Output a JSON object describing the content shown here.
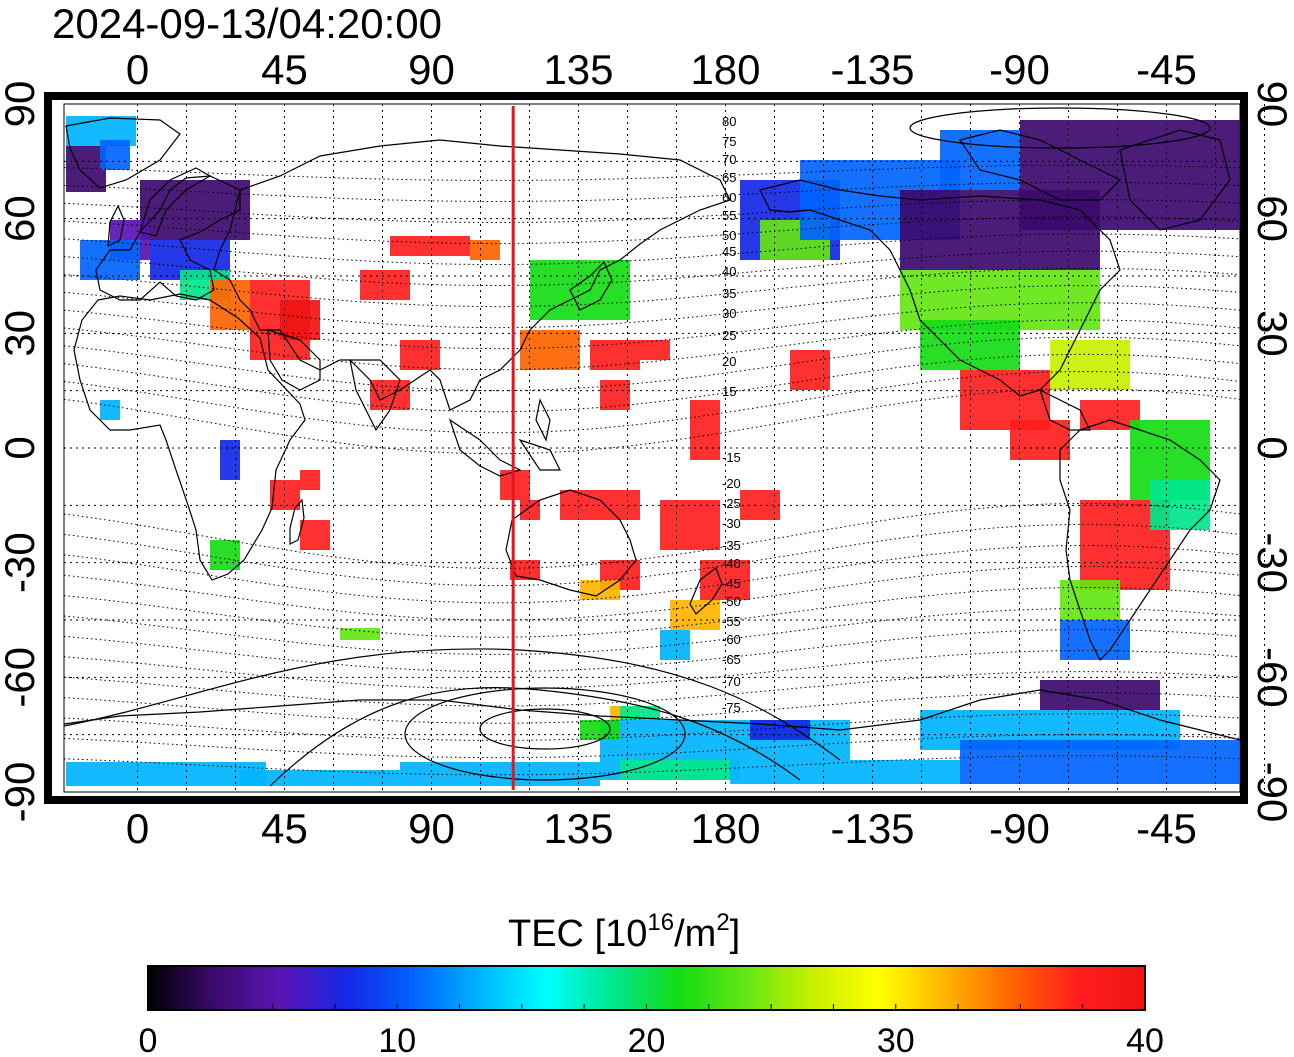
{
  "timestamp": "2024-09-13/04:20:00",
  "map": {
    "lon_start": -22.5,
    "lon_end": 337.5,
    "lat_top": 90,
    "lat_bottom": -90,
    "top_lon_labels": [
      "0",
      "45",
      "90",
      "135",
      "180",
      "-135",
      "-90",
      "-45"
    ],
    "bottom_lon_labels": [
      "0",
      "45",
      "90",
      "135",
      "180",
      "-135",
      "-90",
      "-45"
    ],
    "left_lat_labels": [
      "90",
      "60",
      "30",
      "0",
      "-30",
      "-60",
      "-90"
    ],
    "right_lat_labels": [
      "90",
      "60",
      "30",
      "0",
      "-30",
      "-60",
      "-90"
    ],
    "marker_longitude": 115,
    "marker_color": "#e8141e",
    "magnetic_lat_labels": [
      "80",
      "75",
      "70",
      "65",
      "60",
      "55",
      "50",
      "45",
      "40",
      "35",
      "30",
      "25",
      "20",
      "15",
      "-15",
      "-20",
      "-25",
      "-30",
      "-35",
      "-40",
      "-45",
      "-50",
      "-55",
      "-60",
      "-65",
      "-70",
      "-75"
    ]
  },
  "colorbar": {
    "title_main": "TEC  [10",
    "title_sup1": "16",
    "title_mid": "/m",
    "title_sup2": "2",
    "title_end": "]",
    "min": 0,
    "max": 40,
    "tick_labels": [
      "0",
      "10",
      "20",
      "30",
      "40"
    ],
    "colors": [
      "#000000",
      "#3c0a6e",
      "#5a14b4",
      "#1428e6",
      "#0064ff",
      "#00b4ff",
      "#00ffff",
      "#00e68c",
      "#14dc14",
      "#64e614",
      "#c8f000",
      "#ffff00",
      "#ffb400",
      "#ff6400",
      "#ff1e1e",
      "#f01414"
    ]
  }
}
